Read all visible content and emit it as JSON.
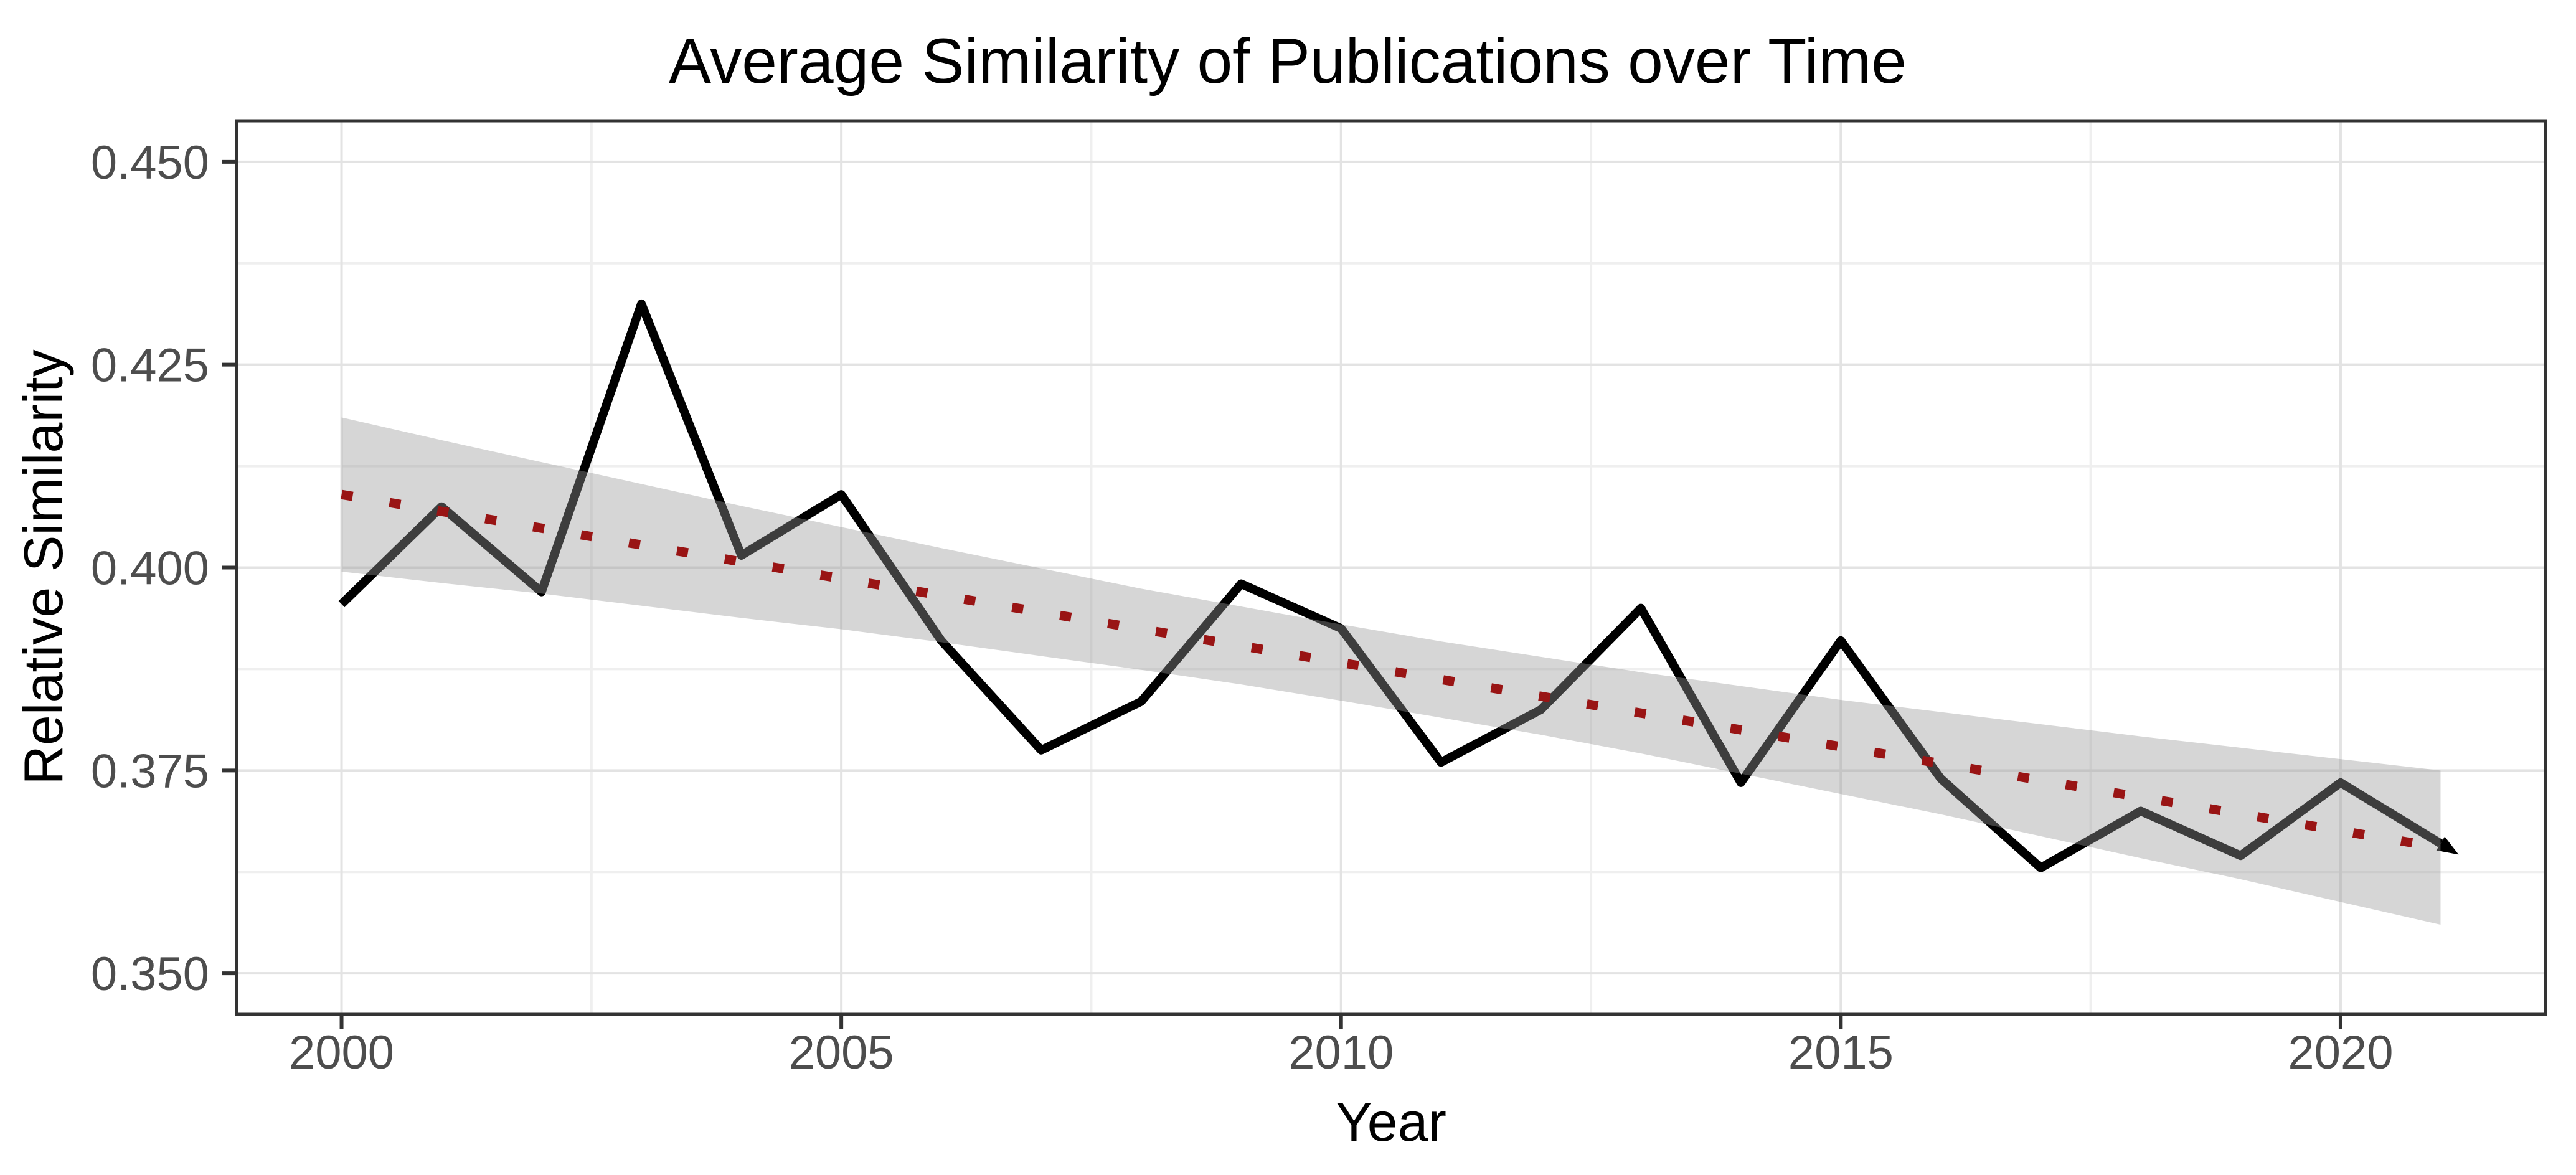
{
  "title": "Average Similarity of Publications over Time",
  "chart_data": {
    "type": "line",
    "title": "Average Similarity of Publications over Time",
    "xlabel": "Year",
    "ylabel": "Relative Similarity",
    "xlim": [
      1998.95,
      2022.05
    ],
    "ylim": [
      0.34495,
      0.45505
    ],
    "grid": "on",
    "legend": "none",
    "x_ticks": [
      {
        "value": 2000,
        "label": "2000"
      },
      {
        "value": 2005,
        "label": "2005"
      },
      {
        "value": 2010,
        "label": "2010"
      },
      {
        "value": 2015,
        "label": "2015"
      },
      {
        "value": 2020,
        "label": "2020"
      }
    ],
    "x_minor_ticks": [
      2002.5,
      2007.5,
      2012.5,
      2017.5
    ],
    "y_ticks": [
      {
        "value": 0.35,
        "label": "0.350"
      },
      {
        "value": 0.375,
        "label": "0.375"
      },
      {
        "value": 0.4,
        "label": "0.400"
      },
      {
        "value": 0.425,
        "label": "0.425"
      },
      {
        "value": 0.45,
        "label": "0.450"
      }
    ],
    "y_minor_ticks": [
      0.3625,
      0.3875,
      0.4125,
      0.4375
    ],
    "series": [
      {
        "name": "average-similarity",
        "style": "solid-line-with-end-arrow",
        "x": [
          2000,
          2001,
          2002,
          2003,
          2004,
          2005,
          2006,
          2007,
          2008,
          2009,
          2010,
          2011,
          2012,
          2013,
          2014,
          2015,
          2016,
          2017,
          2018,
          2019,
          2020,
          2021
        ],
        "values": [
          0.3955,
          0.4075,
          0.397,
          0.4325,
          0.4015,
          0.409,
          0.391,
          0.3775,
          0.3835,
          0.398,
          0.3925,
          0.376,
          0.3825,
          0.395,
          0.3735,
          0.391,
          0.374,
          0.363,
          0.37,
          0.3645,
          0.3735,
          0.366
        ]
      }
    ],
    "trend": {
      "name": "linear-fit",
      "style": "dotted",
      "points": [
        {
          "x": 2000,
          "value": 0.409
        },
        {
          "x": 2021,
          "value": 0.3655
        }
      ]
    },
    "confidence_band": [
      {
        "x": 2000,
        "lower": 0.3995,
        "upper": 0.4185
      },
      {
        "x": 2001,
        "lower": 0.3981,
        "upper": 0.4157
      },
      {
        "x": 2002,
        "lower": 0.3968,
        "upper": 0.413
      },
      {
        "x": 2003,
        "lower": 0.3953,
        "upper": 0.4103
      },
      {
        "x": 2004,
        "lower": 0.3938,
        "upper": 0.4076
      },
      {
        "x": 2005,
        "lower": 0.3924,
        "upper": 0.405
      },
      {
        "x": 2006,
        "lower": 0.3908,
        "upper": 0.4024
      },
      {
        "x": 2007,
        "lower": 0.3891,
        "upper": 0.3999
      },
      {
        "x": 2008,
        "lower": 0.3874,
        "upper": 0.3974
      },
      {
        "x": 2009,
        "lower": 0.3856,
        "upper": 0.3952
      },
      {
        "x": 2010,
        "lower": 0.3836,
        "upper": 0.393
      },
      {
        "x": 2011,
        "lower": 0.3815,
        "upper": 0.3909
      },
      {
        "x": 2012,
        "lower": 0.3794,
        "upper": 0.389
      },
      {
        "x": 2013,
        "lower": 0.3771,
        "upper": 0.3871
      },
      {
        "x": 2014,
        "lower": 0.3746,
        "upper": 0.3854
      },
      {
        "x": 2015,
        "lower": 0.3721,
        "upper": 0.3837
      },
      {
        "x": 2016,
        "lower": 0.3696,
        "upper": 0.3822
      },
      {
        "x": 2017,
        "lower": 0.3669,
        "upper": 0.3807
      },
      {
        "x": 2018,
        "lower": 0.3642,
        "upper": 0.3792
      },
      {
        "x": 2019,
        "lower": 0.3616,
        "upper": 0.3778
      },
      {
        "x": 2020,
        "lower": 0.3588,
        "upper": 0.3764
      },
      {
        "x": 2021,
        "lower": 0.356,
        "upper": 0.375
      }
    ]
  },
  "colors": {
    "background": "#ffffff",
    "panel_background": "#ffffff",
    "panel_border": "#333333",
    "grid_major": "#e3e3e3",
    "grid_minor": "#efefef",
    "line": "#000000",
    "line_under_band": "#3d3d3d",
    "trend": "#991414",
    "band_fill": "#999999",
    "band_opacity": 0.4,
    "tick_mark": "#333333",
    "tick_label": "#4d4d4d",
    "title_text": "#000000",
    "axis_title_text": "#000000"
  }
}
